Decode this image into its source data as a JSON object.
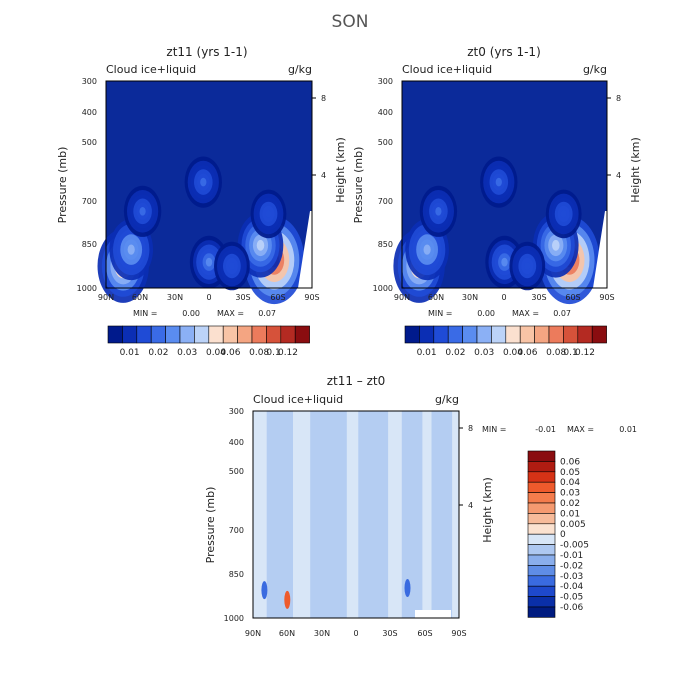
{
  "super_title": "SON",
  "chart_data": [
    {
      "type": "heatmap",
      "title": "zt11 (yrs 1-1)",
      "subtitle_left": "Cloud ice+liquid",
      "subtitle_right": "g/kg",
      "xlabel": "",
      "ylabel": "Pressure (mb)",
      "ylabel_right": "Height (km)",
      "x_ticks": [
        "90N",
        "60N",
        "30N",
        "0",
        "30S",
        "60S",
        "90S"
      ],
      "y_ticks": [
        "300",
        "400",
        "500",
        "700",
        "850",
        "1000"
      ],
      "y_ticks_right": [
        "8",
        "4"
      ],
      "stats": {
        "min_label": "MIN =",
        "min": "0.00",
        "max_label": "MAX =",
        "max": "0.07"
      },
      "colorbar_labels": [
        "0.01",
        "0.02",
        "0.03",
        "0.04",
        "0.06",
        "0.08",
        "0.1",
        "0.12"
      ],
      "colorbar_colors": [
        "#001a8c",
        "#0b2eb4",
        "#1f4bd6",
        "#3a6be6",
        "#5a8cf0",
        "#8bb0f5",
        "#bcd3f8",
        "#fbe0cf",
        "#f8c4a6",
        "#f4a582",
        "#ec7b5c",
        "#d6523a",
        "#b42a22",
        "#8a0d10"
      ],
      "data_range": [
        0.0,
        0.07
      ],
      "features": [
        {
          "lat": 75,
          "p": 880,
          "amp": 0.045,
          "type": "cloud max"
        },
        {
          "lat": 68,
          "p": 800,
          "amp": 0.03,
          "type": "cloud"
        },
        {
          "lat": 58,
          "p": 640,
          "amp": 0.018,
          "type": "cloud"
        },
        {
          "lat": -57,
          "p": 850,
          "amp": 0.062,
          "type": "cloud max"
        },
        {
          "lat": -45,
          "p": 780,
          "amp": 0.034,
          "type": "cloud"
        },
        {
          "lat": -52,
          "p": 650,
          "amp": 0.015,
          "type": "cloud"
        },
        {
          "lat": 5,
          "p": 540,
          "amp": 0.018,
          "type": "cloud"
        },
        {
          "lat": 0,
          "p": 860,
          "amp": 0.02,
          "type": "cloud"
        },
        {
          "lat": -20,
          "p": 880,
          "amp": 0.015,
          "type": "cloud"
        }
      ]
    },
    {
      "type": "heatmap",
      "title": "zt0 (yrs 1-1)",
      "subtitle_left": "Cloud ice+liquid",
      "subtitle_right": "g/kg",
      "xlabel": "",
      "ylabel": "Pressure (mb)",
      "ylabel_right": "Height (km)",
      "x_ticks": [
        "90N",
        "60N",
        "30N",
        "0",
        "30S",
        "60S",
        "90S"
      ],
      "y_ticks": [
        "300",
        "400",
        "500",
        "700",
        "850",
        "1000"
      ],
      "y_ticks_right": [
        "8",
        "4"
      ],
      "stats": {
        "min_label": "MIN =",
        "min": "0.00",
        "max_label": "MAX =",
        "max": "0.07"
      },
      "colorbar_labels": [
        "0.01",
        "0.02",
        "0.03",
        "0.04",
        "0.06",
        "0.08",
        "0.1",
        "0.12"
      ],
      "colorbar_colors": [
        "#001a8c",
        "#0b2eb4",
        "#1f4bd6",
        "#3a6be6",
        "#5a8cf0",
        "#8bb0f5",
        "#bcd3f8",
        "#fbe0cf",
        "#f8c4a6",
        "#f4a582",
        "#ec7b5c",
        "#d6523a",
        "#b42a22",
        "#8a0d10"
      ],
      "data_range": [
        0.0,
        0.07
      ],
      "features": [
        {
          "lat": 75,
          "p": 880,
          "amp": 0.045,
          "type": "cloud max"
        },
        {
          "lat": 68,
          "p": 800,
          "amp": 0.03,
          "type": "cloud"
        },
        {
          "lat": 58,
          "p": 640,
          "amp": 0.018,
          "type": "cloud"
        },
        {
          "lat": -57,
          "p": 850,
          "amp": 0.062,
          "type": "cloud max"
        },
        {
          "lat": -45,
          "p": 780,
          "amp": 0.034,
          "type": "cloud"
        },
        {
          "lat": -52,
          "p": 650,
          "amp": 0.015,
          "type": "cloud"
        },
        {
          "lat": 5,
          "p": 540,
          "amp": 0.018,
          "type": "cloud"
        },
        {
          "lat": 0,
          "p": 860,
          "amp": 0.02,
          "type": "cloud"
        },
        {
          "lat": -20,
          "p": 880,
          "amp": 0.015,
          "type": "cloud"
        }
      ]
    },
    {
      "type": "heatmap",
      "title": "zt11 – zt0",
      "subtitle_left": "Cloud ice+liquid",
      "subtitle_right": "g/kg",
      "xlabel": "",
      "ylabel": "Pressure (mb)",
      "ylabel_right": "Height (km)",
      "x_ticks": [
        "90N",
        "60N",
        "30N",
        "0",
        "30S",
        "60S",
        "90S"
      ],
      "y_ticks": [
        "300",
        "400",
        "500",
        "700",
        "850",
        "1000"
      ],
      "y_ticks_right": [
        "8",
        "4"
      ],
      "stats": {
        "min_label": "MIN =",
        "min": "-0.01",
        "max_label": "MAX =",
        "max": "0.01"
      },
      "colorbar_labels": [
        "0.06",
        "0.05",
        "0.04",
        "0.03",
        "0.02",
        "0.01",
        "0.005",
        "0",
        "-0.005",
        "-0.01",
        "-0.02",
        "-0.03",
        "-0.04",
        "-0.05",
        "-0.06"
      ],
      "colorbar_colors": [
        "#8a0d10",
        "#b01c12",
        "#d63216",
        "#ee5a2c",
        "#f47c4c",
        "#f59a70",
        "#f7bb9a",
        "#fbe2d0",
        "#d8e6f7",
        "#aec8f1",
        "#8aaeec",
        "#5f8de6",
        "#3a6be0",
        "#1e49cc",
        "#0a2fa8",
        "#001b80"
      ],
      "data_range": [
        -0.01,
        0.01
      ],
      "features": [
        {
          "lat": 80,
          "p": 850,
          "amp": 0.006,
          "type": "positive spot"
        },
        {
          "lat": -45,
          "p": 840,
          "amp": 0.005,
          "type": "positive spot"
        },
        {
          "lat": 60,
          "p": 900,
          "amp": -0.006,
          "type": "negative patch"
        }
      ]
    }
  ]
}
